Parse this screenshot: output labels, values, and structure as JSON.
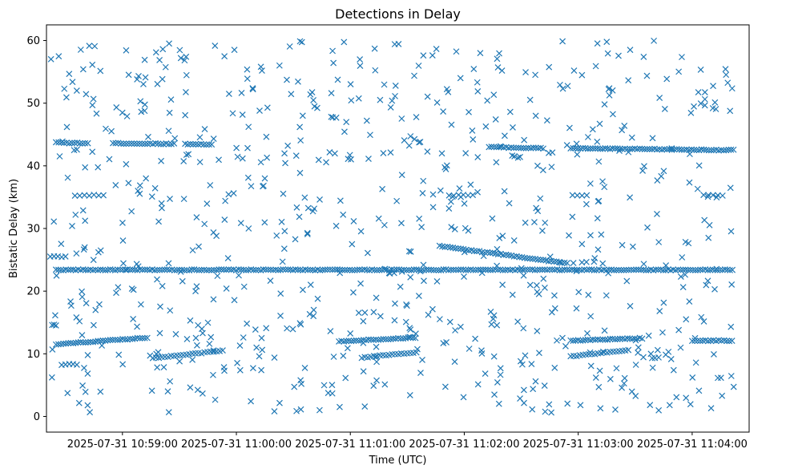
{
  "chart_data": {
    "type": "scatter",
    "title": "Detections in Delay",
    "xlabel": "Time (UTC)",
    "ylabel": "Bistatic Delay (km)",
    "marker": "x",
    "color": "#1f77b4",
    "xlim_seconds_from_10_59_00": [
      -40,
      330
    ],
    "ylim": [
      -2.5,
      62.5
    ],
    "x_ticks": [
      {
        "seconds": 0,
        "label": "2025-07-31 10:59:00"
      },
      {
        "seconds": 60,
        "label": "2025-07-31 11:00:00"
      },
      {
        "seconds": 120,
        "label": "2025-07-31 11:01:00"
      },
      {
        "seconds": 180,
        "label": "2025-07-31 11:02:00"
      },
      {
        "seconds": 240,
        "label": "2025-07-31 11:03:00"
      },
      {
        "seconds": 300,
        "label": "2025-07-31 11:04:00"
      }
    ],
    "y_ticks": [
      {
        "value": 0,
        "label": "0"
      },
      {
        "value": 10,
        "label": "10"
      },
      {
        "value": 20,
        "label": "20"
      },
      {
        "value": 30,
        "label": "30"
      },
      {
        "value": 40,
        "label": "40"
      },
      {
        "value": 50,
        "label": "50"
      },
      {
        "value": 60,
        "label": "60"
      }
    ],
    "tracks": [
      {
        "name": "constant-23.4",
        "t_start": -35,
        "t_end": 322,
        "step": 1.3,
        "y_start": 23.4,
        "y_end": 23.4
      },
      {
        "name": "constant-43.6-a",
        "t_start": -35,
        "t_end": -18,
        "step": 1.4,
        "y_start": 43.7,
        "y_end": 43.6
      },
      {
        "name": "constant-43.6-b",
        "t_start": -5,
        "t_end": 28,
        "step": 1.4,
        "y_start": 43.6,
        "y_end": 43.5
      },
      {
        "name": "constant-43.4-c",
        "t_start": 33,
        "t_end": 48,
        "step": 1.4,
        "y_start": 43.5,
        "y_end": 43.4
      },
      {
        "name": "constant-42.9",
        "t_start": 193,
        "t_end": 222,
        "step": 1.3,
        "y_start": 43.0,
        "y_end": 42.8
      },
      {
        "name": "constant-42.6",
        "t_start": 236,
        "t_end": 322,
        "step": 1.3,
        "y_start": 42.8,
        "y_end": 42.5
      },
      {
        "name": "rising-11-12",
        "t_start": -35,
        "t_end": 14,
        "step": 1.3,
        "y_start": 11.5,
        "y_end": 12.6
      },
      {
        "name": "rising-12-12.5",
        "t_start": 114,
        "t_end": 155,
        "step": 1.3,
        "y_start": 12.0,
        "y_end": 12.6
      },
      {
        "name": "rising-12-12.5-b",
        "t_start": 236,
        "t_end": 275,
        "step": 1.3,
        "y_start": 12.1,
        "y_end": 12.5
      },
      {
        "name": "constant-12.1",
        "t_start": 300,
        "t_end": 322,
        "step": 1.4,
        "y_start": 12.1,
        "y_end": 12.1
      },
      {
        "name": "rising-9.5-10.5",
        "t_start": 16,
        "t_end": 53,
        "step": 1.6,
        "y_start": 9.3,
        "y_end": 10.5
      },
      {
        "name": "rising-9.5-10.5-b",
        "t_start": 126,
        "t_end": 156,
        "step": 1.6,
        "y_start": 9.4,
        "y_end": 10.3
      },
      {
        "name": "rising-9.5-10.5-c",
        "t_start": 236,
        "t_end": 268,
        "step": 1.6,
        "y_start": 9.6,
        "y_end": 10.6
      },
      {
        "name": "descending-27-24",
        "t_start": 167,
        "t_end": 235,
        "step": 1.4,
        "y_start": 27.2,
        "y_end": 24.4
      },
      {
        "name": "constant-35.3-a",
        "t_start": -25,
        "t_end": -10,
        "step": 2.5,
        "y_start": 35.3,
        "y_end": 35.3
      },
      {
        "name": "constant-35.3-b",
        "t_start": 172,
        "t_end": 185,
        "step": 2.5,
        "y_start": 35.3,
        "y_end": 35.3
      },
      {
        "name": "constant-35.3-c",
        "t_start": 237,
        "t_end": 246,
        "step": 2.5,
        "y_start": 35.3,
        "y_end": 35.3
      },
      {
        "name": "constant-35.3-d",
        "t_start": 306,
        "t_end": 318,
        "step": 2.5,
        "y_start": 35.3,
        "y_end": 35.3
      },
      {
        "name": "constant-8.3",
        "t_start": -32,
        "t_end": -24,
        "step": 2.0,
        "y_start": 8.3,
        "y_end": 8.3
      },
      {
        "name": "constant-25.5",
        "t_start": -38,
        "t_end": -30,
        "step": 2.0,
        "y_start": 25.5,
        "y_end": 25.5
      },
      {
        "name": "constant-14.6",
        "t_start": -37,
        "t_end": -35,
        "step": 1.0,
        "y_start": 14.6,
        "y_end": 14.6
      }
    ],
    "scatter_noise": {
      "t_start": -38,
      "t_end": 322,
      "y_min": 0.5,
      "y_max": 60,
      "count": 760,
      "seed": 17
    }
  }
}
